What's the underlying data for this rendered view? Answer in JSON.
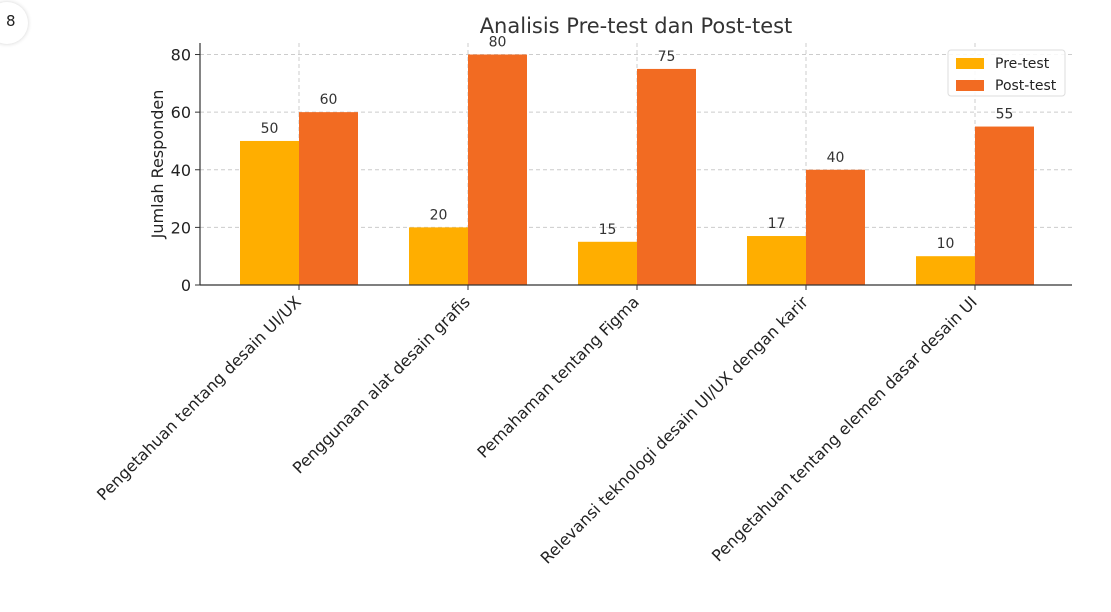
{
  "app_icon": {
    "glyph": "8",
    "name": "openai-logo-icon"
  },
  "chart_data": {
    "type": "bar",
    "title": "Analisis Pre-test dan Post-test",
    "xlabel": "",
    "ylabel": "Jumlah Responden",
    "categories": [
      "Pengetahuan tentang desain UI/UX",
      "Penggunaan alat desain grafis",
      "Pemahaman tentang Figma",
      "Relevansi teknologi desain UI/UX dengan karir",
      "Pengetahuan tentang elemen dasar desain UI"
    ],
    "series": [
      {
        "name": "Pre-test",
        "values": [
          50,
          20,
          15,
          17,
          10
        ],
        "color": "#FFAE00"
      },
      {
        "name": "Post-test",
        "values": [
          60,
          80,
          75,
          40,
          55
        ],
        "color": "#F26B22"
      }
    ],
    "ylim": [
      0,
      84
    ],
    "yticks": [
      0,
      20,
      40,
      60,
      80
    ],
    "grid": true,
    "legend": "top-right"
  }
}
